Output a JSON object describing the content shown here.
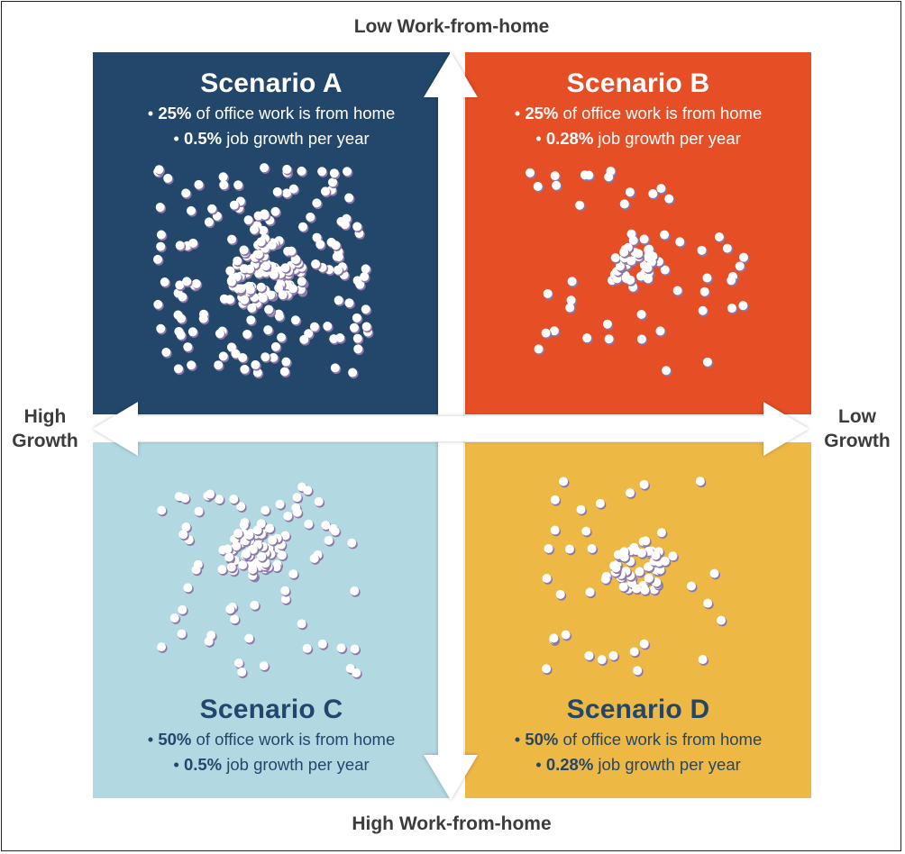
{
  "axes": {
    "top": "Low Work-from-home",
    "bottom": "High Work-from-home",
    "left_line1": "High",
    "left_line2": "Growth",
    "right_line1": "Low",
    "right_line2": "Growth"
  },
  "colors": {
    "scenario_a": "#23476b",
    "scenario_b": "#e64e26",
    "scenario_c": "#b2d8e1",
    "scenario_d": "#eeb845",
    "dot_fill": "#ffffff",
    "dot_shadow": "#8b78a8",
    "dark_text": "#23476b"
  },
  "scenarios": [
    {
      "id": "A",
      "title": "Scenario A",
      "wfh_value": "25%",
      "wfh_text": " of office work is from home",
      "growth_value": "0.5%",
      "growth_text": " job growth per year",
      "bullet": "•"
    },
    {
      "id": "B",
      "title": "Scenario B",
      "wfh_value": "25%",
      "wfh_text": " of office work is from home",
      "growth_value": "0.28%",
      "growth_text": " job growth per year",
      "bullet": "•"
    },
    {
      "id": "C",
      "title": "Scenario C",
      "wfh_value": "50%",
      "wfh_text": " of office work is from home",
      "growth_value": "0.5%",
      "growth_text": " job growth per year",
      "bullet": "•"
    },
    {
      "id": "D",
      "title": "Scenario D",
      "wfh_value": "50%",
      "wfh_text": " of office work is from home",
      "growth_value": "0.28%",
      "growth_text": " job growth per year",
      "bullet": "•"
    }
  ]
}
